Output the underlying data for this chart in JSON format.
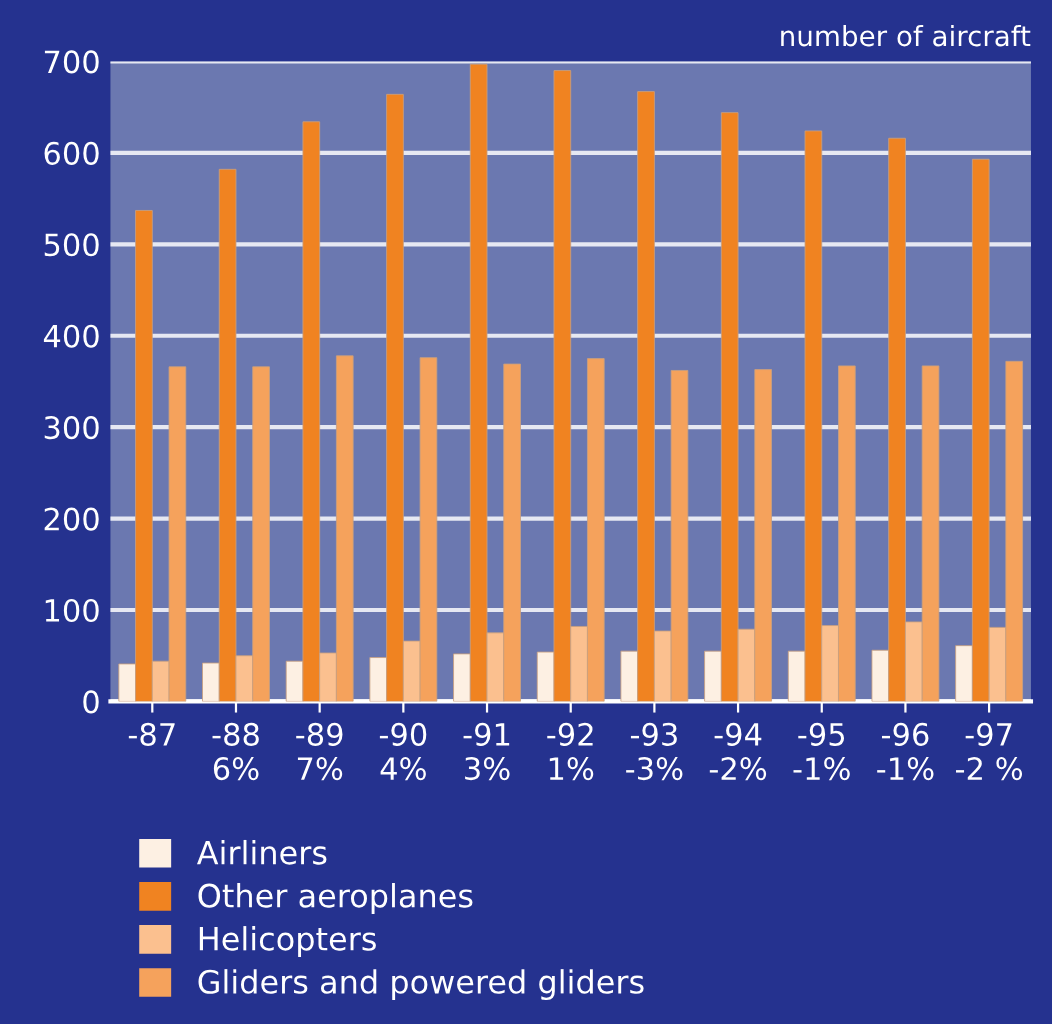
{
  "chart_data": {
    "type": "bar",
    "ylabel": "number of aircraft",
    "categories": [
      "-87",
      "-88\n6%",
      "-89\n7%",
      "-90\n4%",
      "-91\n3%",
      "-92\n1%",
      "-93\n-3%",
      "-94\n-2%",
      "-95\n-1%",
      "-96\n-1%",
      "-97\n-2 %"
    ],
    "series": [
      {
        "name": "Airliners",
        "color": "#fdf0e3",
        "values": [
          41,
          42,
          44,
          48,
          52,
          54,
          55,
          55,
          55,
          56,
          61
        ]
      },
      {
        "name": "Other aeroplanes",
        "color": "#f08321",
        "values": [
          537,
          582,
          634,
          664,
          697,
          690,
          667,
          644,
          624,
          616,
          593
        ]
      },
      {
        "name": "Helicopters",
        "color": "#fbc08f",
        "values": [
          44,
          50,
          53,
          66,
          75,
          82,
          77,
          79,
          83,
          87,
          81
        ]
      },
      {
        "name": "Gliders and powered gliders",
        "color": "#f5a25c",
        "values": [
          366,
          366,
          378,
          376,
          369,
          375,
          362,
          363,
          367,
          367,
          372
        ]
      }
    ],
    "ylim": [
      0,
      700
    ],
    "yticks": [
      0,
      100,
      200,
      300,
      400,
      500,
      600,
      700
    ],
    "grid": "y",
    "legend": "bottom left"
  }
}
